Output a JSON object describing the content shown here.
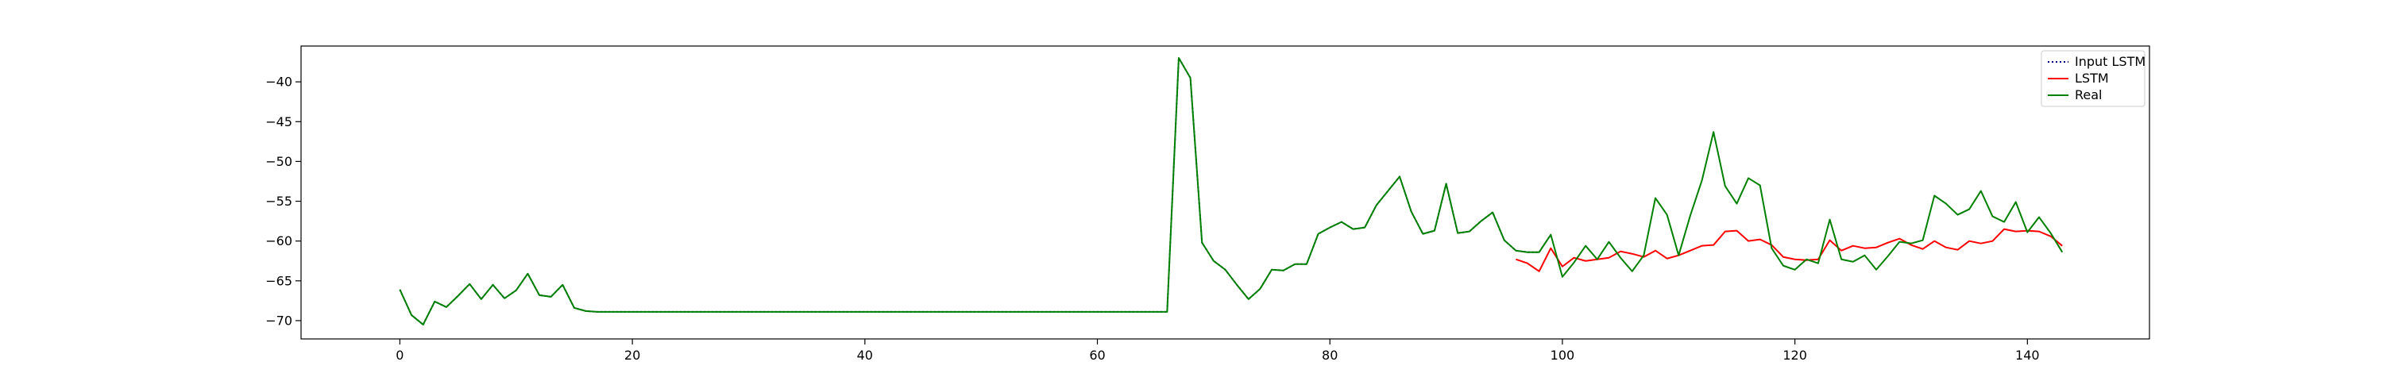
{
  "chart_data": {
    "type": "line",
    "title": "",
    "xlabel": "",
    "ylabel": "",
    "xlim": [
      -8.5,
      150.5
    ],
    "ylim": [
      -72.3,
      -35.5
    ],
    "xticks": [
      0,
      20,
      40,
      60,
      80,
      100,
      120,
      140
    ],
    "yticks": [
      -70,
      -65,
      -60,
      -55,
      -50,
      -45,
      -40
    ],
    "grid": false,
    "legend_position": "top-right",
    "series": [
      {
        "name": "Input LSTM",
        "color": "#00008b",
        "style": "dotted",
        "x_start": 0,
        "values": [
          -66.1,
          -69.3,
          -70.5,
          -67.6,
          -68.3,
          -66.9,
          -65.4,
          -67.3,
          -65.5,
          -67.2,
          -66.2,
          -64.1,
          -66.8,
          -67.0,
          -65.5,
          -68.4,
          -68.8,
          -68.9,
          -68.9,
          -68.9,
          -68.9,
          -68.9,
          -68.9,
          -68.9,
          -68.9,
          -68.9,
          -68.9,
          -68.9,
          -68.9,
          -68.9,
          -68.9,
          -68.9,
          -68.9,
          -68.9,
          -68.9,
          -68.9,
          -68.9,
          -68.9,
          -68.9,
          -68.9,
          -68.9,
          -68.9,
          -68.9,
          -68.9,
          -68.9,
          -68.9,
          -68.9,
          -68.9,
          -68.9,
          -68.9,
          -68.9,
          -68.9,
          -68.9,
          -68.9,
          -68.9,
          -68.9,
          -68.9,
          -68.9,
          -68.9,
          -68.9,
          -68.9,
          -68.9,
          -68.9,
          -68.9,
          -68.9,
          -68.9,
          -68.9,
          -37.0,
          -39.5,
          -60.2,
          -62.5,
          -63.6,
          -65.5,
          -67.3,
          -66.0,
          -63.6,
          -63.7,
          -62.9,
          -62.9,
          -59.1,
          -58.3,
          -57.6,
          -58.5,
          -58.3,
          -55.5,
          -53.7,
          -51.9,
          -56.3,
          -59.1,
          -58.7,
          -52.8,
          -59.0,
          -58.8,
          -57.5,
          -56.4,
          -59.9,
          -61.2,
          -61.4,
          -61.4,
          -59.2
        ]
      },
      {
        "name": "LSTM",
        "color": "#ff0000",
        "style": "solid",
        "x_start": 96,
        "values": [
          -62.3,
          -62.8,
          -63.8,
          -60.9,
          -63.2,
          -62.1,
          -62.5,
          -62.3,
          -62.1,
          -61.3,
          -61.6,
          -62.0,
          -61.2,
          -62.2,
          -61.8,
          -61.2,
          -60.6,
          -60.5,
          -58.8,
          -58.7,
          -60.0,
          -59.8,
          -60.5,
          -62.0,
          -62.3,
          -62.4,
          -62.3,
          -59.9,
          -61.2,
          -60.6,
          -60.9,
          -60.8,
          -60.2,
          -59.7,
          -60.5,
          -61.0,
          -60.0,
          -60.8,
          -61.1,
          -60.0,
          -60.3,
          -60.0,
          -58.5,
          -58.8,
          -58.7,
          -58.8,
          -59.4,
          -60.6
        ]
      },
      {
        "name": "Real",
        "color": "#008000",
        "style": "solid",
        "x_start": 0,
        "values": [
          -66.1,
          -69.3,
          -70.5,
          -67.6,
          -68.3,
          -66.9,
          -65.4,
          -67.3,
          -65.5,
          -67.2,
          -66.2,
          -64.1,
          -66.8,
          -67.0,
          -65.5,
          -68.4,
          -68.8,
          -68.9,
          -68.9,
          -68.9,
          -68.9,
          -68.9,
          -68.9,
          -68.9,
          -68.9,
          -68.9,
          -68.9,
          -68.9,
          -68.9,
          -68.9,
          -68.9,
          -68.9,
          -68.9,
          -68.9,
          -68.9,
          -68.9,
          -68.9,
          -68.9,
          -68.9,
          -68.9,
          -68.9,
          -68.9,
          -68.9,
          -68.9,
          -68.9,
          -68.9,
          -68.9,
          -68.9,
          -68.9,
          -68.9,
          -68.9,
          -68.9,
          -68.9,
          -68.9,
          -68.9,
          -68.9,
          -68.9,
          -68.9,
          -68.9,
          -68.9,
          -68.9,
          -68.9,
          -68.9,
          -68.9,
          -68.9,
          -68.9,
          -68.9,
          -37.0,
          -39.5,
          -60.2,
          -62.5,
          -63.6,
          -65.5,
          -67.3,
          -66.0,
          -63.6,
          -63.7,
          -62.9,
          -62.9,
          -59.1,
          -58.3,
          -57.6,
          -58.5,
          -58.3,
          -55.5,
          -53.7,
          -51.9,
          -56.3,
          -59.1,
          -58.7,
          -52.8,
          -59.0,
          -58.8,
          -57.5,
          -56.4,
          -59.9,
          -61.2,
          -61.4,
          -61.4,
          -59.2,
          -64.5,
          -62.7,
          -60.6,
          -62.3,
          -60.1,
          -62.1,
          -63.8,
          -61.8,
          -54.6,
          -56.7,
          -61.8,
          -56.8,
          -52.4,
          -46.3,
          -53.1,
          -55.3,
          -52.1,
          -53.0,
          -60.9,
          -63.1,
          -63.6,
          -62.3,
          -62.8,
          -57.3,
          -62.3,
          -62.6,
          -61.8,
          -63.6,
          -61.9,
          -60.1,
          -60.3,
          -59.9,
          -54.3,
          -55.3,
          -56.7,
          -56.0,
          -53.7,
          -56.9,
          -57.6,
          -55.1,
          -58.9,
          -57.0,
          -59.0,
          -61.4
        ]
      }
    ]
  }
}
